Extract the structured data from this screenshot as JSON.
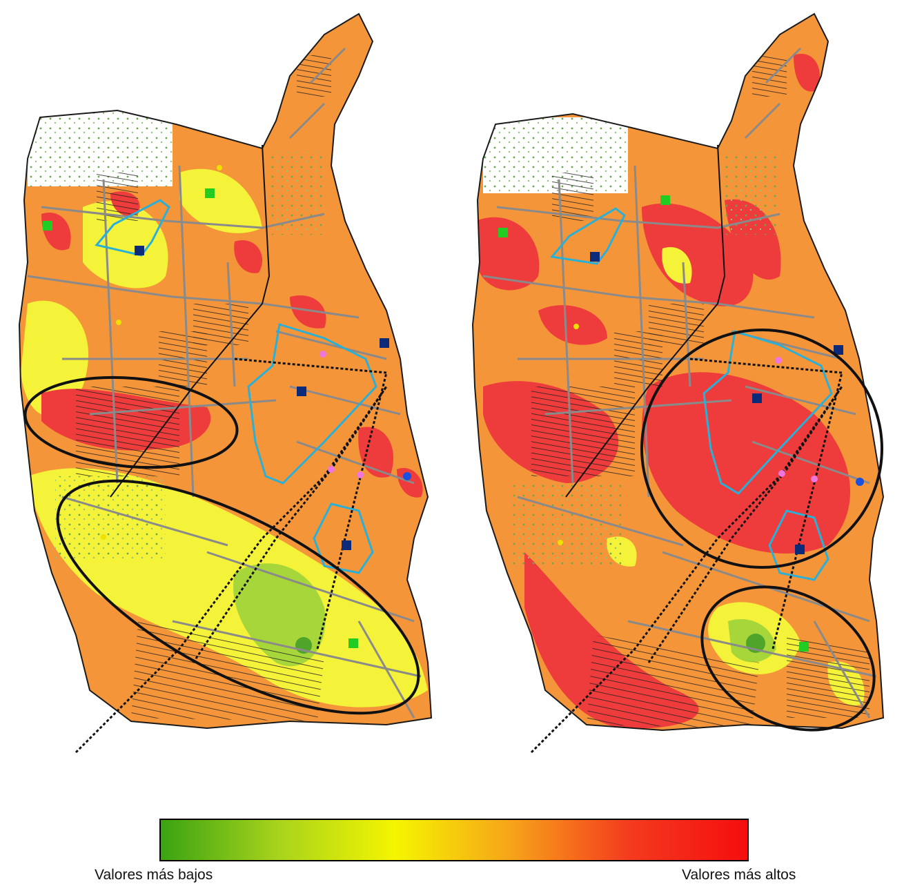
{
  "legend": {
    "low_label": "Valores más bajos",
    "high_label": "Valores más altos",
    "gradient_colors": [
      "#3aa312",
      "#a8d31c",
      "#f5f500",
      "#f7a21a",
      "#f43a1e",
      "#f50e0e"
    ]
  },
  "map_colors": {
    "lowest": "#4ea52a",
    "low": "#a6d63a",
    "medium": "#f4f239",
    "high": "#f4953a",
    "highest": "#ee3b3b",
    "boundary": "#1a1a1a",
    "roads": "#8a8a8a",
    "zone_outline": "#2ab0d6",
    "railway": "#111111"
  },
  "maps": [
    {
      "name": "left-map",
      "highlighted_areas": 2
    },
    {
      "name": "right-map",
      "highlighted_areas": 2
    }
  ],
  "marker_symbols": {
    "blue-square": "#0b2a7a",
    "green-square": "#22cc22",
    "yellow-pentagon": "#f0e000",
    "pink-circle": "#ee77dd",
    "blue-target": "#1b4fe0",
    "cross": "#111111"
  }
}
